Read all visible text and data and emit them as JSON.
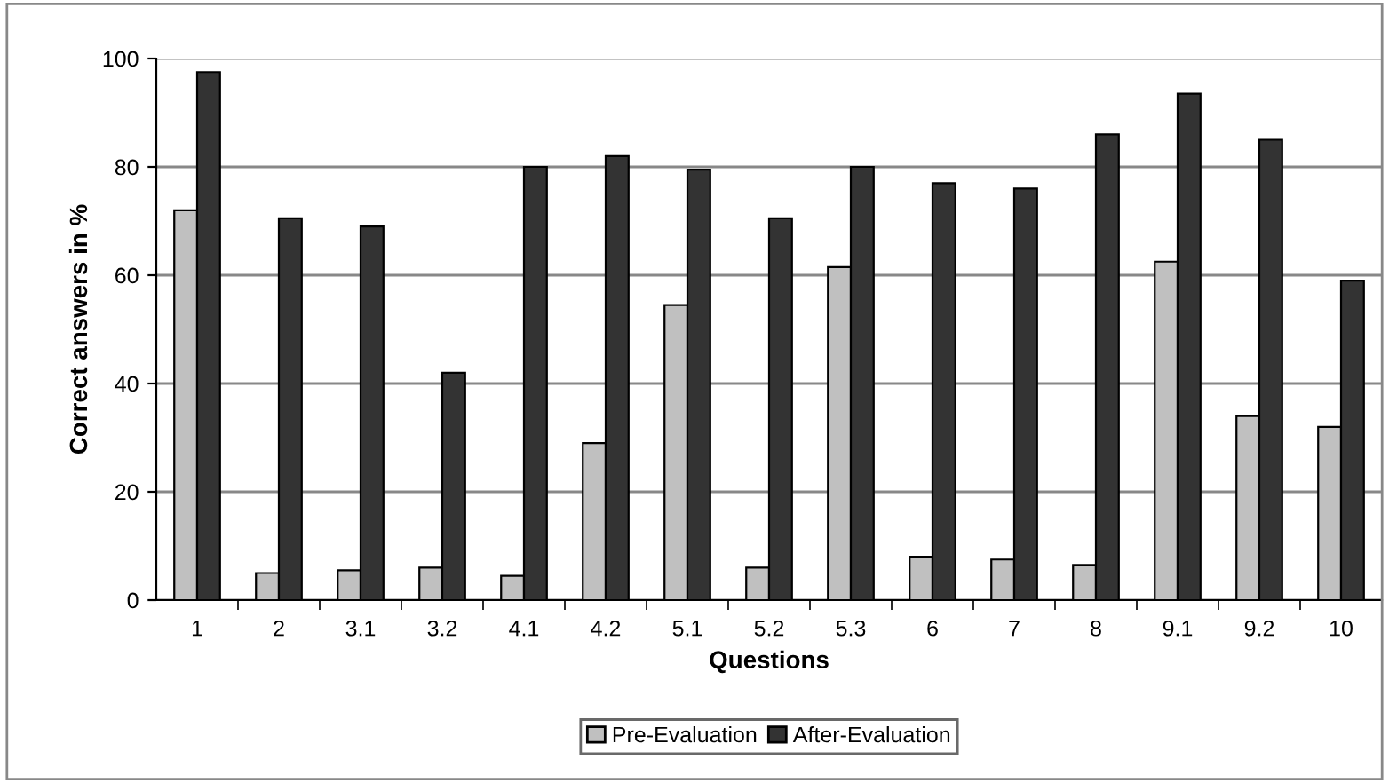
{
  "chart_data": {
    "type": "bar",
    "xlabel": "Questions",
    "ylabel": "Correct answers in %",
    "categories": [
      "1",
      "2",
      "3.1",
      "3.2",
      "4.1",
      "4.2",
      "5.1",
      "5.2",
      "5.3",
      "6",
      "7",
      "8",
      "9.1",
      "9.2",
      "10"
    ],
    "series": [
      {
        "name": "Pre-Evaluation",
        "color": "#c0c0c0",
        "values": [
          72,
          5,
          5.5,
          6,
          4.5,
          29,
          54.5,
          6,
          61.5,
          8,
          7.5,
          6.5,
          62.5,
          34,
          32
        ]
      },
      {
        "name": "After-Evaluation",
        "color": "#333333",
        "values": [
          97.5,
          70.5,
          69,
          42,
          80,
          82,
          79.5,
          70.5,
          80,
          77,
          76,
          86,
          93.5,
          85,
          59
        ]
      }
    ],
    "ylim": [
      0,
      100
    ],
    "yticks": [
      0,
      20,
      40,
      60,
      80,
      100
    ],
    "grid": "y",
    "legend": "bottom"
  }
}
